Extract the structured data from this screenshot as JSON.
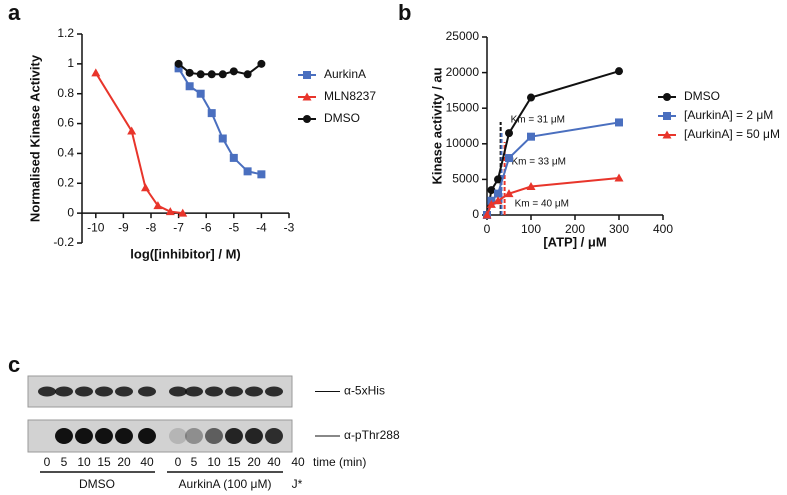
{
  "chart_data": [
    {
      "type": "line",
      "panel_label": "a",
      "xlabel": "log([inhibitor] / M)",
      "ylabel": "Normalised Kinase Activity",
      "xlim": [
        -10.5,
        -3
      ],
      "xticks": [
        -10,
        -9,
        -8,
        -7,
        -6,
        -5,
        -4,
        -3
      ],
      "ylim": [
        -0.2,
        1.2
      ],
      "yticks": [
        -0.2,
        0,
        0.2,
        0.4,
        0.6,
        0.8,
        1.0,
        1.2
      ],
      "legend": "right",
      "series": [
        {
          "name": "AurkinA",
          "color": "#4a6fbf",
          "marker": "square",
          "x": [
            -7,
            -6.6,
            -6.2,
            -5.8,
            -5.4,
            -5,
            -4.5,
            -4
          ],
          "values": [
            0.97,
            0.85,
            0.8,
            0.67,
            0.5,
            0.37,
            0.28,
            0.26
          ]
        },
        {
          "name": "MLN8237",
          "color": "#e8352b",
          "marker": "triangle",
          "x": [
            -10,
            -8.7,
            -8.2,
            -7.75,
            -7.3,
            -6.85
          ],
          "values": [
            0.94,
            0.55,
            0.17,
            0.05,
            0.01,
            0.0
          ]
        },
        {
          "name": "DMSO",
          "color": "#111111",
          "marker": "circle",
          "x": [
            -7,
            -6.6,
            -6.2,
            -5.8,
            -5.4,
            -5,
            -4.5,
            -4
          ],
          "values": [
            1.0,
            0.94,
            0.93,
            0.93,
            0.93,
            0.95,
            0.93,
            1.0
          ]
        }
      ]
    },
    {
      "type": "line",
      "panel_label": "b",
      "xlabel": "[ATP] / μM",
      "ylabel": "Kinase activity / au",
      "xlim": [
        0,
        400
      ],
      "xticks": [
        0,
        100,
        200,
        300,
        400
      ],
      "ylim": [
        0,
        25000
      ],
      "yticks": [
        0,
        5000,
        10000,
        15000,
        20000,
        25000
      ],
      "legend": "right",
      "series": [
        {
          "name": "DMSO",
          "color": "#111111",
          "marker": "circle",
          "x": [
            0,
            10,
            25,
            50,
            100,
            300
          ],
          "values": [
            0,
            3500,
            5000,
            11500,
            16500,
            20200
          ]
        },
        {
          "name": "[AurkinA] = 2 μM",
          "color": "#4a6fbf",
          "marker": "square",
          "x": [
            0,
            10,
            25,
            50,
            100,
            300
          ],
          "values": [
            0,
            2000,
            3000,
            8000,
            11000,
            13000
          ]
        },
        {
          "name": "[AurkinA] = 50 μM",
          "color": "#e8352b",
          "marker": "triangle",
          "x": [
            0,
            10,
            25,
            50,
            100,
            300
          ],
          "values": [
            0,
            1500,
            2000,
            3000,
            4000,
            5200
          ]
        }
      ],
      "annotations": [
        {
          "text": "Km = 31 μM",
          "x": 31,
          "color": "#111111"
        },
        {
          "text": "Km = 33 μM",
          "x": 33,
          "color": "#4a6fbf"
        },
        {
          "text": "Km = 40 μM",
          "x": 40,
          "color": "#e8352b"
        }
      ]
    }
  ],
  "blot": {
    "panel_label": "c",
    "antibodies": [
      "α-5xHis",
      "α-pThr288"
    ],
    "lanes": [
      "0",
      "5",
      "10",
      "15",
      "20",
      "40",
      "0",
      "5",
      "10",
      "15",
      "20",
      "40",
      "40"
    ],
    "lane_axis_label": "time (min)",
    "groups": [
      "DMSO",
      "AurkinA (100 μM)",
      "J*"
    ]
  }
}
